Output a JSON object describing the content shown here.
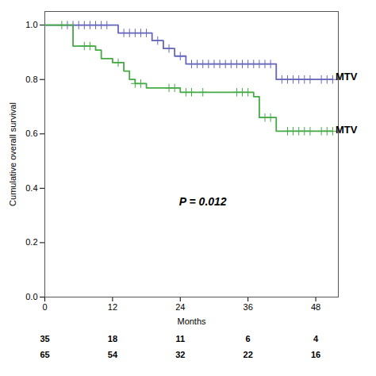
{
  "chart_data": {
    "type": "step",
    "xlabel": "Months",
    "ylabel": "Cumulative overall survival",
    "xlim": [
      0,
      52
    ],
    "ylim": [
      0.0,
      1.05
    ],
    "xticks": [
      0,
      12,
      24,
      36,
      48
    ],
    "yticks": [
      {
        "value": 0.0,
        "label": "0.0"
      },
      0.2,
      0.4,
      0.6,
      0.8,
      {
        "value": 1.0,
        "label": "1.0"
      }
    ],
    "grid": false,
    "series": [
      {
        "color": "#6666bb",
        "marker": "plus",
        "label": {
          "text": "MTV",
          "x": 51.5,
          "y": 0.81
        },
        "x": [
          0,
          4,
          5,
          6,
          7,
          8,
          9,
          10,
          11,
          12,
          13,
          14,
          15,
          16,
          17,
          18,
          19,
          20,
          21,
          22,
          23,
          24,
          25,
          26,
          27,
          28,
          29,
          30,
          31,
          32,
          33,
          34,
          35,
          36,
          37,
          38,
          39,
          40,
          41,
          42,
          43,
          44,
          45,
          46,
          47,
          48,
          49,
          50,
          51
        ],
        "values": [
          1.0,
          1.0,
          1.0,
          1.0,
          1.0,
          1.0,
          1.0,
          1.0,
          1.0,
          1.0,
          0.971,
          0.971,
          0.971,
          0.971,
          0.971,
          0.971,
          0.943,
          0.943,
          0.914,
          0.914,
          0.886,
          0.886,
          0.857,
          0.857,
          0.857,
          0.857,
          0.857,
          0.857,
          0.857,
          0.857,
          0.857,
          0.857,
          0.857,
          0.857,
          0.857,
          0.857,
          0.857,
          0.857,
          0.8,
          0.8,
          0.8,
          0.8,
          0.8,
          0.8,
          0.8,
          0.8,
          0.8,
          0.8,
          0.8
        ],
        "censors": {
          "x": [
            4,
            5,
            6,
            7,
            8,
            9,
            10,
            11,
            14,
            15,
            16,
            17,
            18,
            20,
            22,
            24,
            26,
            27,
            28,
            29,
            30,
            31,
            32,
            33,
            34,
            35,
            36,
            37,
            38,
            39,
            40,
            42,
            43,
            44,
            45,
            46,
            47,
            49,
            50,
            51
          ],
          "values": [
            1.0,
            1.0,
            1.0,
            1.0,
            1.0,
            1.0,
            1.0,
            1.0,
            0.971,
            0.971,
            0.971,
            0.971,
            0.971,
            0.943,
            0.914,
            0.886,
            0.857,
            0.857,
            0.857,
            0.857,
            0.857,
            0.857,
            0.857,
            0.857,
            0.857,
            0.857,
            0.857,
            0.857,
            0.857,
            0.857,
            0.857,
            0.8,
            0.8,
            0.8,
            0.8,
            0.8,
            0.8,
            0.8,
            0.8,
            0.8
          ]
        }
      },
      {
        "color": "#44aa44",
        "marker": "plus",
        "label": {
          "text": "MTV",
          "x": 51.5,
          "y": 0.615
        },
        "x": [
          0,
          3,
          5,
          7,
          8,
          9,
          10,
          11,
          12,
          13,
          14,
          15,
          16,
          17,
          18,
          22,
          23,
          24,
          25,
          26,
          28,
          34,
          35,
          36,
          37,
          38,
          39,
          40,
          41,
          42,
          43,
          44,
          45,
          46,
          47,
          48,
          49,
          50,
          51
        ],
        "values": [
          1.0,
          1.0,
          0.923,
          0.923,
          0.923,
          0.908,
          0.877,
          0.877,
          0.862,
          0.862,
          0.831,
          0.8,
          0.785,
          0.785,
          0.769,
          0.769,
          0.769,
          0.753,
          0.753,
          0.753,
          0.753,
          0.753,
          0.753,
          0.753,
          0.737,
          0.66,
          0.66,
          0.66,
          0.61,
          0.61,
          0.61,
          0.61,
          0.61,
          0.61,
          0.61,
          0.61,
          0.61,
          0.61,
          0.61
        ],
        "censors": {
          "x": [
            3,
            7,
            8,
            13,
            16,
            17,
            22,
            23,
            25,
            26,
            28,
            34,
            35,
            36,
            39,
            40,
            43,
            44,
            45,
            46,
            47,
            49,
            50,
            51
          ],
          "values": [
            1.0,
            0.923,
            0.923,
            0.862,
            0.785,
            0.785,
            0.769,
            0.769,
            0.753,
            0.753,
            0.753,
            0.753,
            0.753,
            0.753,
            0.66,
            0.66,
            0.61,
            0.61,
            0.61,
            0.61,
            0.61,
            0.61,
            0.61,
            0.61
          ]
        }
      }
    ],
    "annotations": [
      {
        "text": "P = 0.012",
        "x": 28,
        "y": 0.35
      }
    ],
    "at_risk": {
      "x": [
        0,
        12,
        24,
        36,
        48
      ],
      "rows": [
        [
          35,
          18,
          11,
          6,
          4
        ],
        [
          65,
          54,
          32,
          22,
          16
        ]
      ]
    }
  }
}
